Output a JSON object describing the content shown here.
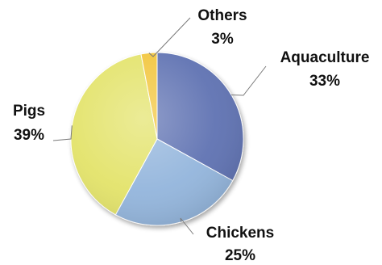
{
  "chart_data": {
    "type": "pie",
    "slices": [
      {
        "label": "Aquaculture",
        "value": 33,
        "value_label": "33%",
        "color": "#5e72b2"
      },
      {
        "label": "Chickens",
        "value": 25,
        "value_label": "25%",
        "color": "#93b5dc"
      },
      {
        "label": "Pigs",
        "value": 39,
        "value_label": "39%",
        "color": "#e3e36a"
      },
      {
        "label": "Others",
        "value": 3,
        "value_label": "3%",
        "color": "#f2c53a"
      }
    ],
    "start": "12 o'clock",
    "direction": "clockwise",
    "legend": "none",
    "data_labels": "outside with leader lines"
  }
}
